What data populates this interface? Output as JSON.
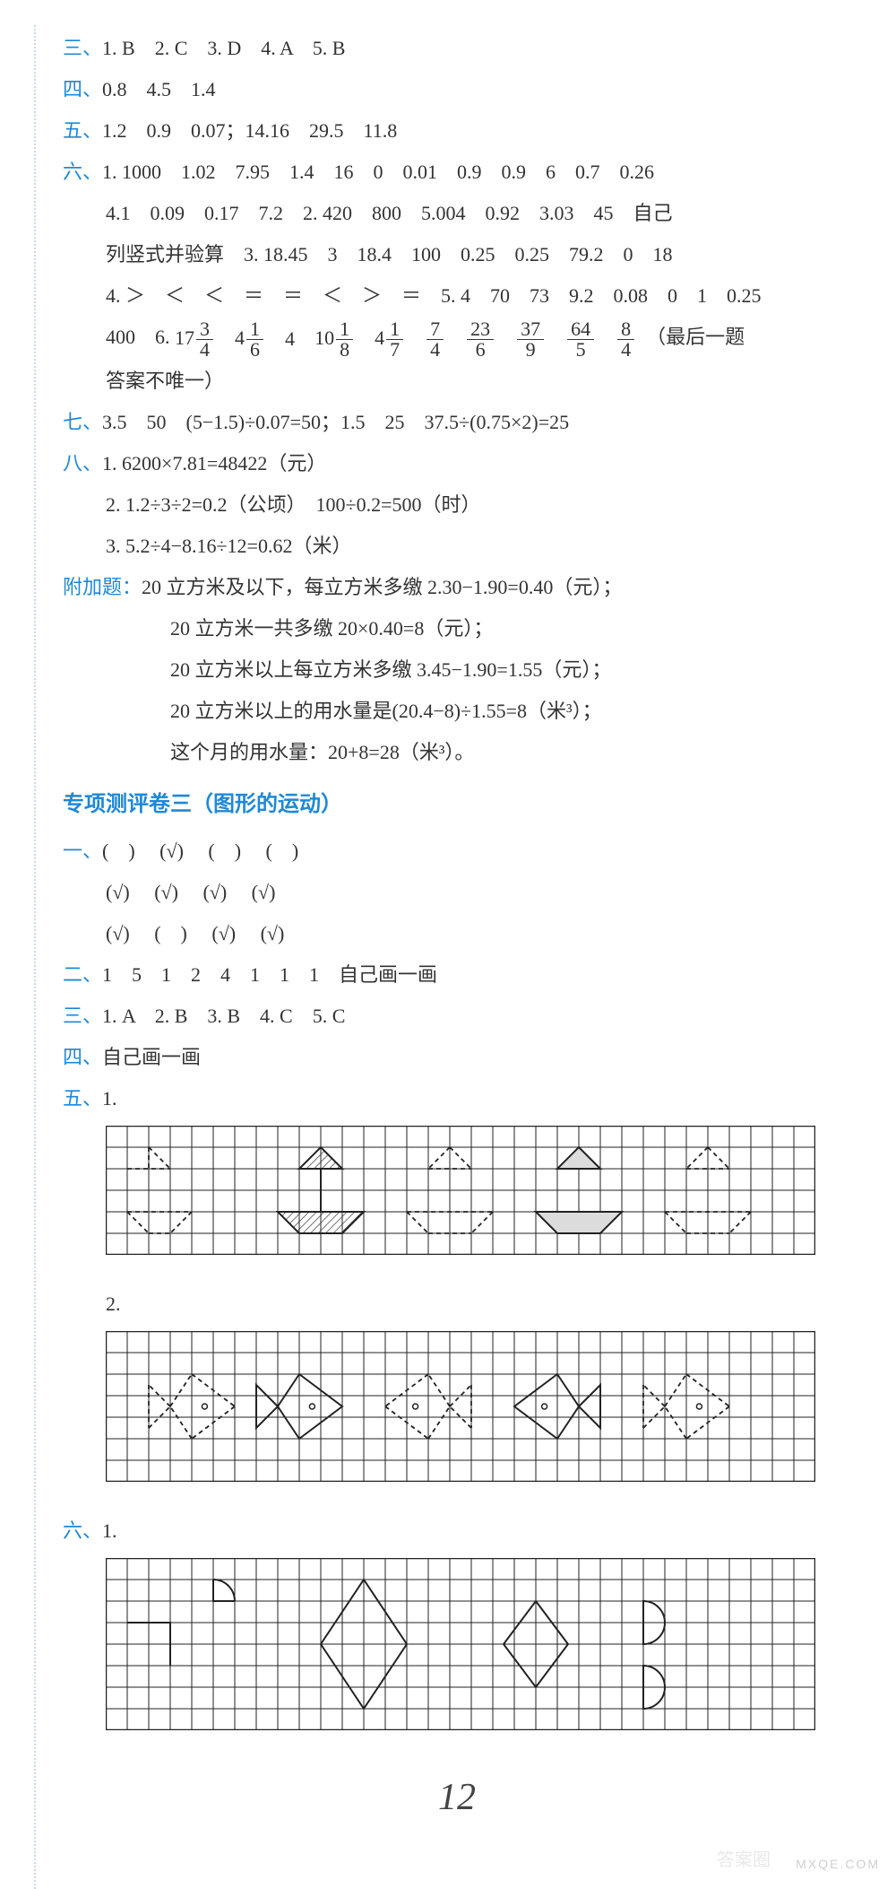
{
  "colors": {
    "label": "#1e88d8",
    "text": "#333333",
    "bg": "#ffffff",
    "grid": "#222222",
    "watermark": "#cfcfcf"
  },
  "font": {
    "family": "SimSun",
    "size_body": 22,
    "size_title": 24,
    "size_pagenum": 42
  },
  "lines": {
    "san": {
      "label": "三、",
      "text": "1. B　2. C　3. D　4. A　5. B"
    },
    "si": {
      "label": "四、",
      "text": "0.8　4.5　1.4"
    },
    "wu": {
      "label": "五、",
      "text": "1.2　0.9　0.07；14.16　29.5　11.8"
    },
    "liu": {
      "label": "六、",
      "l1": "1. 1000　1.02　7.95　1.4　16　0　0.01　0.9　0.9　6　0.7　0.26",
      "l2": "4.1　0.09　0.17　7.2　2. 420　800　5.004　0.92　3.03　45　自己",
      "l3": "列竖式并验算　3. 18.45　3　18.4　100　0.25　0.25　79.2　0　18",
      "l4": "4. ＞　＜　＜　＝　＝　＜　＞　＝　5. 4　70　73　9.2　0.08　0　1　0.25",
      "l5a": "400　6. ",
      "l5_mixed": [
        {
          "w": "17",
          "n": "3",
          "d": "4"
        },
        {
          "w": "4",
          "n": "1",
          "d": "6"
        },
        {
          "w": "4",
          "n": "",
          "d": ""
        },
        {
          "w": "10",
          "n": "1",
          "d": "8"
        },
        {
          "w": "4",
          "n": "1",
          "d": "7"
        },
        {
          "w": "",
          "n": "7",
          "d": "4"
        },
        {
          "w": "",
          "n": "23",
          "d": "6"
        },
        {
          "w": "",
          "n": "37",
          "d": "9"
        },
        {
          "w": "",
          "n": "64",
          "d": "5"
        },
        {
          "w": "",
          "n": "8",
          "d": "4"
        }
      ],
      "l5b": "（最后一题",
      "l6": "答案不唯一）"
    },
    "qi": {
      "label": "七、",
      "text": "3.5　50　(5−1.5)÷0.07=50；1.5　25　37.5÷(0.75×2)=25"
    },
    "ba": {
      "label": "八、",
      "l1": "1. 6200×7.81=48422（元）",
      "l2": "2. 1.2÷3÷2=0.2（公顷）　100÷0.2=500（时）",
      "l3": "3. 5.2÷4−8.16÷12=0.62（米）"
    },
    "fujia": {
      "label": "附加题：",
      "l1": "20 立方米及以下，每立方米多缴 2.30−1.90=0.40（元）；",
      "l2": "20 立方米一共多缴 20×0.40=8（元）；",
      "l3": "20 立方米以上每立方米多缴 3.45−1.90=1.55（元）；",
      "l4": "20 立方米以上的用水量是(20.4−8)÷1.55=8（米³）；",
      "l5": "这个月的用水量：20+8=28（米³）。"
    },
    "title3": "专项测评卷三（图形的运动）",
    "yi": {
      "label": "一、",
      "l1": "(　) 　(√) 　(　) 　(　)",
      "l2": "(√) 　(√) 　(√) 　(√)",
      "l3": "(√) 　(　) 　(√) 　(√)"
    },
    "er": {
      "label": "二、",
      "text": "1　5　1　2　4　1　1　1　自己画一画"
    },
    "san2": {
      "label": "三、",
      "text": "1. A　2. B　3. B　4. C　5. C"
    },
    "si2": {
      "label": "四、",
      "text": "自己画一画"
    },
    "wu2": {
      "label": "五、",
      "n1": "1.",
      "n2": "2."
    },
    "liu2": {
      "label": "六、",
      "n1": "1."
    }
  },
  "figures": {
    "grid": {
      "cell": 24,
      "stroke": "#222222",
      "stroke_width": 1
    },
    "wu2_1": {
      "cols": 33,
      "rows": 6
    },
    "wu2_2": {
      "cols": 33,
      "rows": 7
    },
    "liu2_1": {
      "cols": 33,
      "rows": 8
    }
  },
  "pagenum": "12",
  "watermark": "MXQE.COM",
  "watermark2": "答案圈"
}
